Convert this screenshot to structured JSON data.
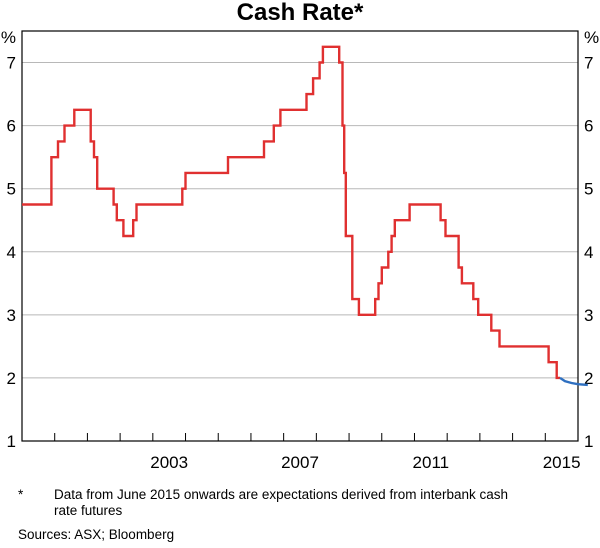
{
  "chart_data": {
    "type": "line",
    "title": "Cash Rate*",
    "ylabel_left": "%",
    "ylabel_right": "%",
    "ylim": [
      1,
      7.5
    ],
    "yticks": [
      1,
      2,
      3,
      4,
      5,
      6,
      7
    ],
    "xlim": [
      1999.0,
      2016.0
    ],
    "xtick_labels": [
      "2003",
      "2007",
      "2011",
      "2015"
    ],
    "grid": true,
    "series": [
      {
        "color": "#e03030",
        "step": true,
        "points": [
          [
            1999.0,
            4.75
          ],
          [
            1999.9,
            5.5
          ],
          [
            2000.1,
            5.75
          ],
          [
            2000.3,
            6.0
          ],
          [
            2000.6,
            6.25
          ],
          [
            2001.1,
            5.75
          ],
          [
            2001.2,
            5.5
          ],
          [
            2001.3,
            5.0
          ],
          [
            2001.8,
            4.75
          ],
          [
            2001.9,
            4.5
          ],
          [
            2002.1,
            4.25
          ],
          [
            2002.4,
            4.5
          ],
          [
            2002.5,
            4.75
          ],
          [
            2003.9,
            5.0
          ],
          [
            2004.0,
            5.25
          ],
          [
            2005.3,
            5.5
          ],
          [
            2006.4,
            5.75
          ],
          [
            2006.7,
            6.0
          ],
          [
            2006.9,
            6.25
          ],
          [
            2007.7,
            6.5
          ],
          [
            2007.9,
            6.75
          ],
          [
            2008.1,
            7.0
          ],
          [
            2008.2,
            7.25
          ],
          [
            2008.7,
            7.0
          ],
          [
            2008.8,
            6.0
          ],
          [
            2008.85,
            5.25
          ],
          [
            2008.9,
            4.25
          ],
          [
            2009.1,
            3.25
          ],
          [
            2009.3,
            3.0
          ],
          [
            2009.8,
            3.25
          ],
          [
            2009.9,
            3.5
          ],
          [
            2010.0,
            3.75
          ],
          [
            2010.2,
            4.0
          ],
          [
            2010.3,
            4.25
          ],
          [
            2010.4,
            4.5
          ],
          [
            2010.85,
            4.75
          ],
          [
            2011.8,
            4.5
          ],
          [
            2011.95,
            4.25
          ],
          [
            2012.35,
            3.75
          ],
          [
            2012.45,
            3.5
          ],
          [
            2012.8,
            3.25
          ],
          [
            2012.95,
            3.0
          ],
          [
            2013.35,
            2.75
          ],
          [
            2013.6,
            2.5
          ],
          [
            2015.1,
            2.25
          ],
          [
            2015.35,
            2.0
          ],
          [
            2015.45,
            2.0
          ]
        ]
      },
      {
        "color": "#2e6fc0",
        "step": false,
        "points": [
          [
            2015.45,
            2.0
          ],
          [
            2015.6,
            1.95
          ],
          [
            2015.8,
            1.92
          ],
          [
            2016.0,
            1.9
          ],
          [
            2016.3,
            1.89
          ]
        ]
      }
    ]
  },
  "footnote": {
    "mark": "*",
    "text": "Data from June 2015 onwards are expectations derived from interbank cash rate futures"
  },
  "sources": "Sources:  ASX; Bloomberg"
}
